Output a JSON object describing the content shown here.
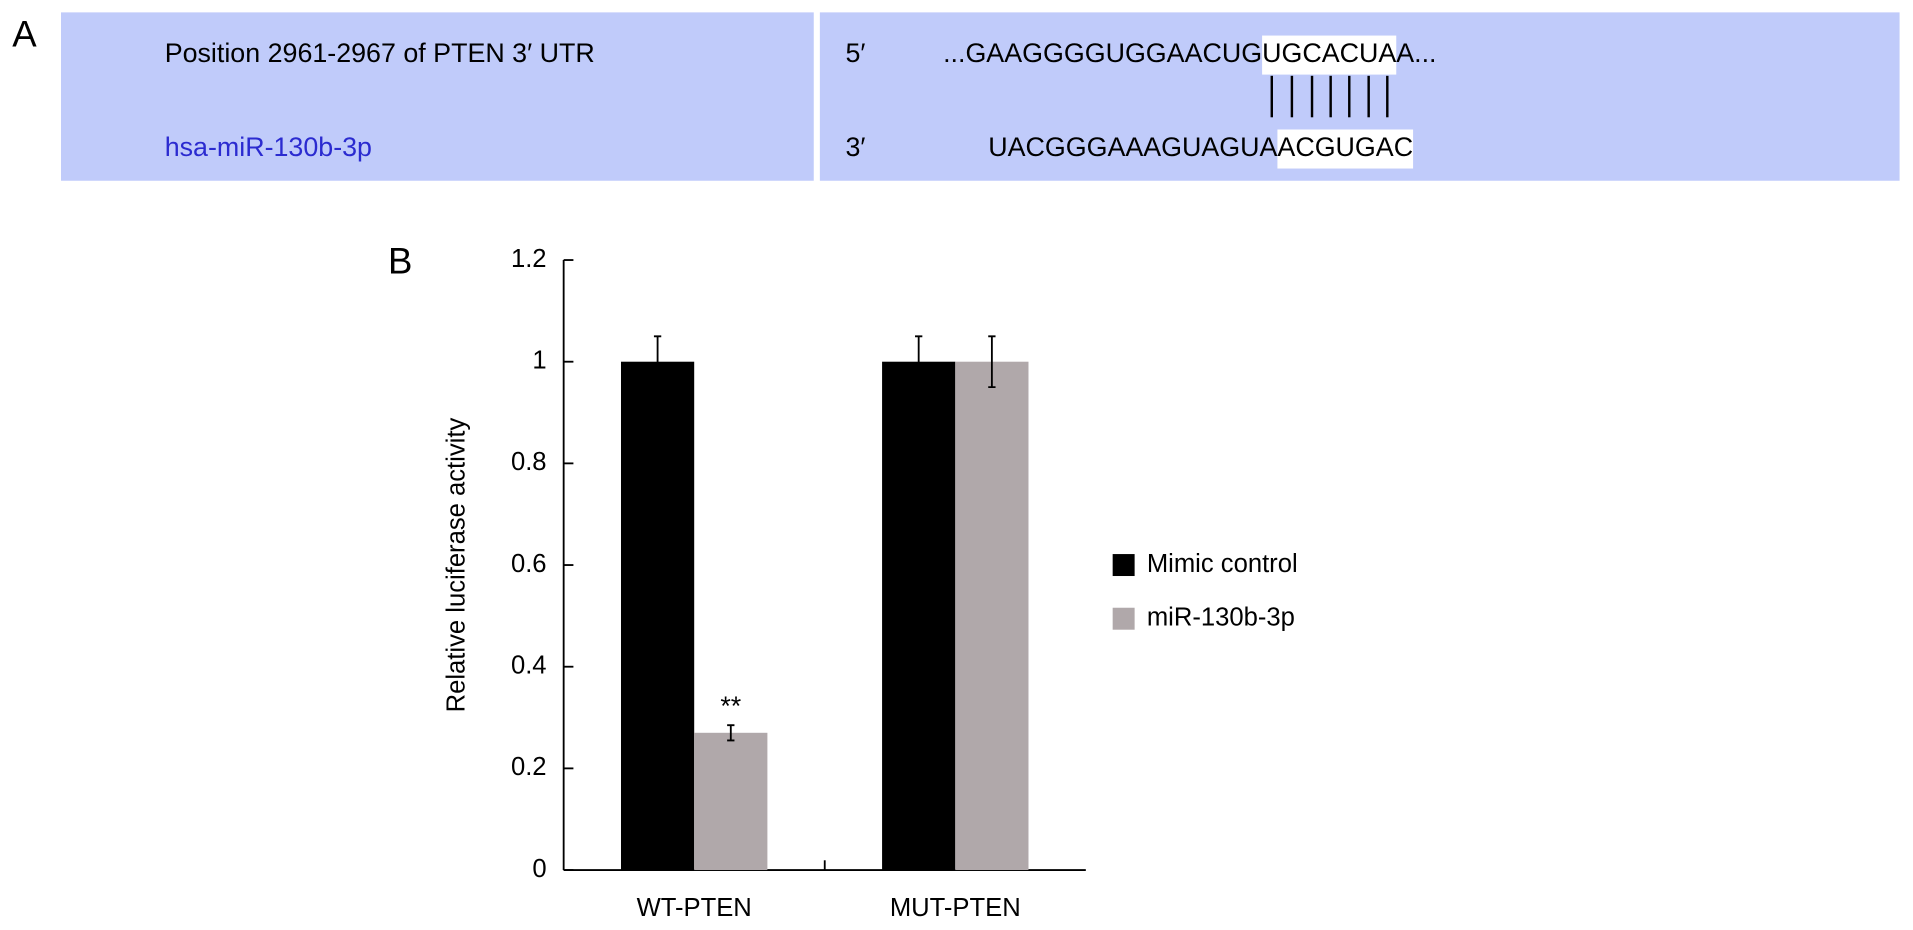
{
  "panel_a": {
    "label": "A",
    "target_name": "Position 2961-2967 of PTEN 3′ UTR",
    "mirna_name": "hsa-miR-130b-3p",
    "target_end": "5′",
    "mirna_end": "3′",
    "target_sequence": [
      "...GAAGGGGUGGAACUG",
      "UGCACUA",
      "A..."
    ],
    "mirna_sequence": [
      "UACGGGAAAGUAGUA",
      "ACGUGAC"
    ]
  },
  "chart_data": {
    "type": "bar",
    "panel_label": "B",
    "y_label": "Relative luciferase activity",
    "categories": [
      "WT-PTEN",
      "MUT-PTEN"
    ],
    "series": [
      {
        "name": "Mimic control",
        "color": "#000000",
        "values": [
          1,
          1
        ],
        "errors": [
          0.05,
          0.05
        ]
      },
      {
        "name": "miR-130b-3p",
        "color": "#b0a8aa",
        "values": [
          0.27,
          1
        ],
        "errors": [
          0.015,
          0.05
        ]
      }
    ],
    "annotations": [
      {
        "text": "**",
        "category": 0,
        "series": 1
      }
    ],
    "ylim": [
      0,
      1.2
    ],
    "yticks": [
      0,
      0.2,
      0.4,
      0.6,
      0.8,
      1,
      1.2
    ],
    "legend": "right"
  }
}
